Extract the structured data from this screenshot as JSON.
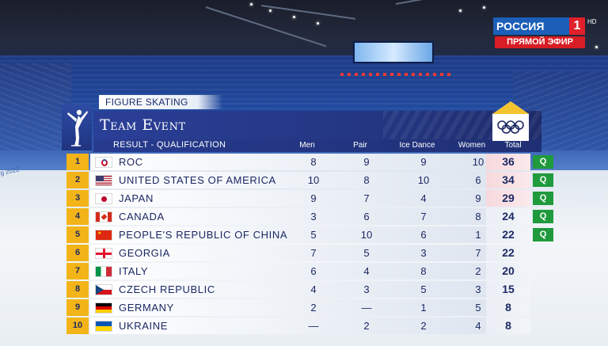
{
  "broadcaster": {
    "channel": "РОССИЯ",
    "number": "1",
    "hd": "HD",
    "live": "ПРЯМОЙ ЭФИР"
  },
  "header": {
    "sport": "FIGURE SKATING",
    "event": "Team Event",
    "subtitle": "RESULT - QUALIFICATION",
    "columns": {
      "men": "Men",
      "pair": "Pair",
      "ice_dance": "Ice Dance",
      "women": "Women",
      "total": "Total"
    }
  },
  "rows": [
    {
      "rank": "1",
      "flag": "roc",
      "country": "ROC",
      "men": "8",
      "pair": "9",
      "ice_dance": "9",
      "women": "10",
      "total": "36",
      "q": "Q"
    },
    {
      "rank": "2",
      "flag": "usa",
      "country": "UNITED STATES OF AMERICA",
      "men": "10",
      "pair": "8",
      "ice_dance": "10",
      "women": "6",
      "total": "34",
      "q": "Q"
    },
    {
      "rank": "3",
      "flag": "japan",
      "country": "JAPAN",
      "men": "9",
      "pair": "7",
      "ice_dance": "4",
      "women": "9",
      "total": "29",
      "q": "Q"
    },
    {
      "rank": "4",
      "flag": "canada",
      "country": "CANADA",
      "men": "3",
      "pair": "6",
      "ice_dance": "7",
      "women": "8",
      "total": "24",
      "q": "Q"
    },
    {
      "rank": "5",
      "flag": "china",
      "country": "PEOPLE'S REPUBLIC OF CHINA",
      "men": "5",
      "pair": "10",
      "ice_dance": "6",
      "women": "1",
      "total": "22",
      "q": "Q"
    },
    {
      "rank": "6",
      "flag": "georgia",
      "country": "GEORGIA",
      "men": "7",
      "pair": "5",
      "ice_dance": "3",
      "women": "7",
      "total": "22",
      "q": ""
    },
    {
      "rank": "7",
      "flag": "italy",
      "country": "ITALY",
      "men": "6",
      "pair": "4",
      "ice_dance": "8",
      "women": "2",
      "total": "20",
      "q": ""
    },
    {
      "rank": "8",
      "flag": "czech",
      "country": "CZECH REPUBLIC",
      "men": "4",
      "pair": "3",
      "ice_dance": "5",
      "women": "3",
      "total": "15",
      "q": ""
    },
    {
      "rank": "9",
      "flag": "germany",
      "country": "GERMANY",
      "men": "2",
      "pair": "—",
      "ice_dance": "1",
      "women": "5",
      "total": "8",
      "q": ""
    },
    {
      "rank": "10",
      "flag": "ukraine",
      "country": "UKRAINE",
      "men": "—",
      "pair": "2",
      "ice_dance": "2",
      "women": "4",
      "total": "8",
      "q": ""
    }
  ],
  "colors": {
    "rank_bg": "#f2b418",
    "q_badge": "#1f9a3c",
    "header_blue": "#23357f",
    "text_navy": "#1b2863"
  }
}
